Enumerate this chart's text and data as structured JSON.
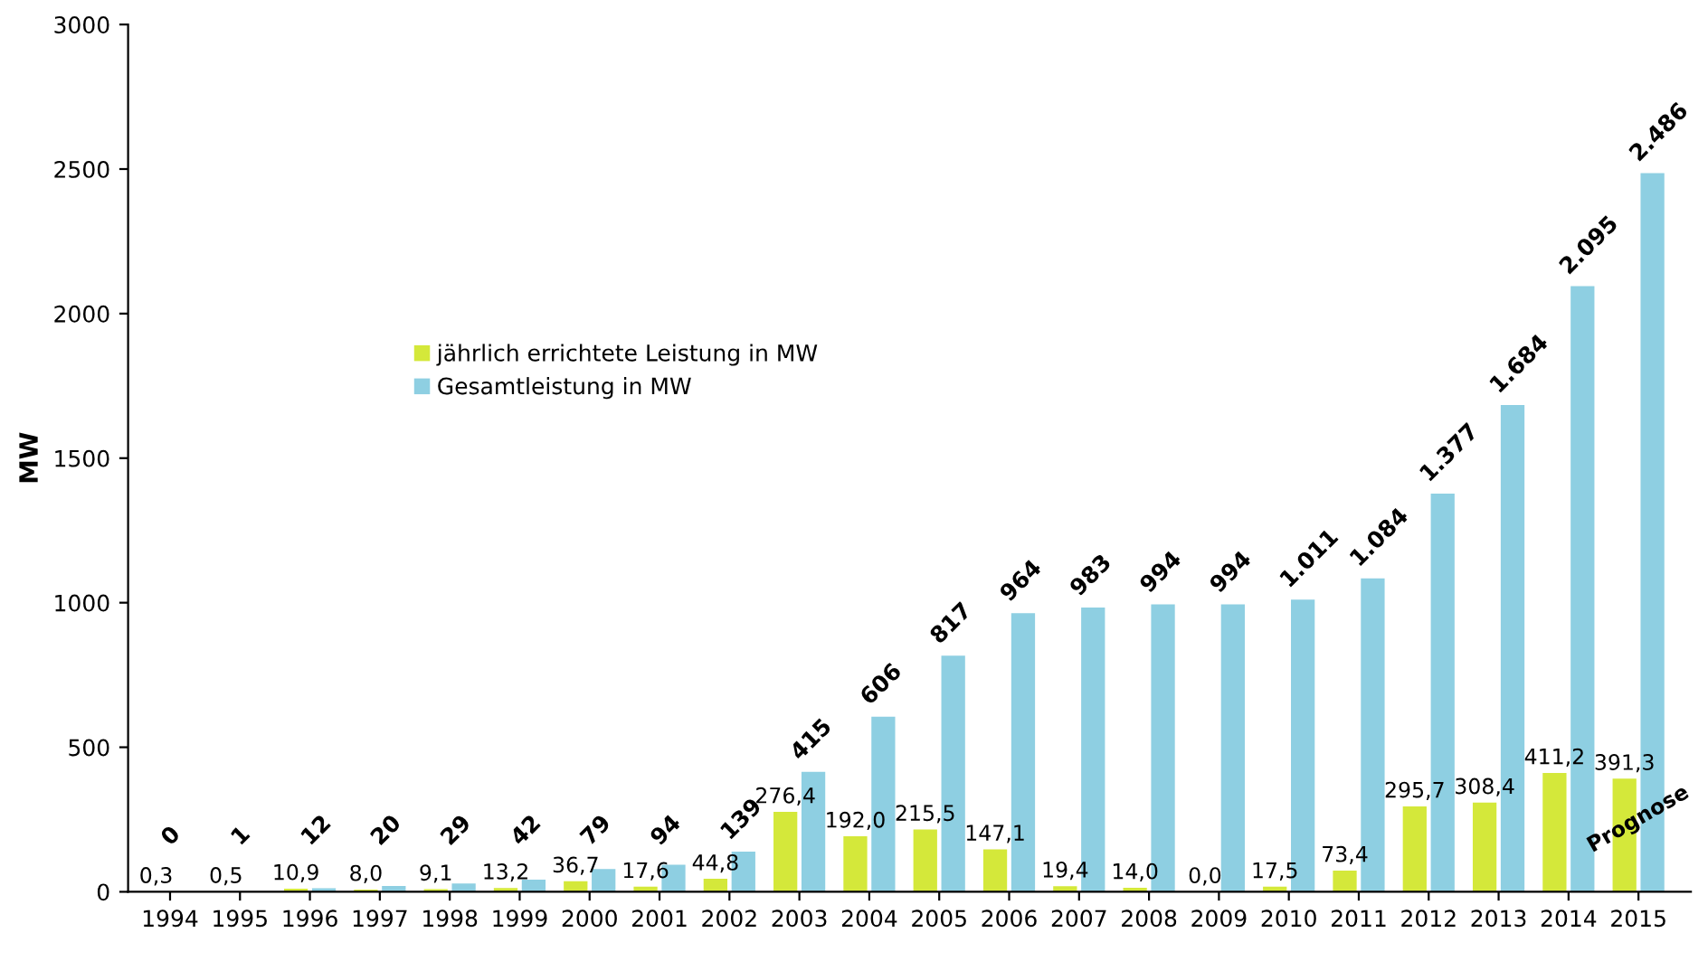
{
  "chart_data": {
    "type": "bar",
    "ylabel": "MW",
    "categories": [
      "1994",
      "1995",
      "1996",
      "1997",
      "1998",
      "1999",
      "2000",
      "2001",
      "2002",
      "2003",
      "2004",
      "2005",
      "2006",
      "2007",
      "2008",
      "2009",
      "2010",
      "2011",
      "2012",
      "2013",
      "2014",
      "2015"
    ],
    "series": [
      {
        "name": "jährlich errichtete Leistung in MW",
        "color": "#d4e83a",
        "values": [
          0.3,
          0.5,
          10.9,
          8.0,
          9.1,
          13.2,
          36.7,
          17.6,
          44.8,
          276.4,
          192.0,
          215.5,
          147.1,
          19.4,
          14.0,
          0.0,
          17.5,
          73.4,
          295.7,
          308.4,
          411.2,
          391.3
        ],
        "value_labels": [
          "0,3",
          "0,5",
          "10,9",
          "8,0",
          "9,1",
          "13,2",
          "36,7",
          "17,6",
          "44,8",
          "276,4",
          "192,0",
          "215,5",
          "147,1",
          "19,4",
          "14,0",
          "0,0",
          "17,5",
          "73,4",
          "295,7",
          "308,4",
          "411,2",
          "391,3"
        ]
      },
      {
        "name": "Gesamtleistung in MW",
        "color": "#8ecfe2",
        "values": [
          0,
          1,
          12,
          20,
          29,
          42,
          79,
          94,
          139,
          415,
          606,
          817,
          964,
          983,
          994,
          994,
          1011,
          1084,
          1377,
          1684,
          2095,
          2486
        ],
        "value_labels": [
          "0",
          "1",
          "12",
          "20",
          "29",
          "42",
          "79",
          "94",
          "139",
          "415",
          "606",
          "817",
          "964",
          "983",
          "994",
          "994",
          "1.011",
          "1.084",
          "1.377",
          "1.684",
          "2.095",
          "2.486"
        ]
      }
    ],
    "ylim": [
      0,
      3000
    ],
    "yticks": [
      0,
      500,
      1000,
      1500,
      2000,
      2500,
      3000
    ],
    "grid": false,
    "legend": "center left",
    "annotations": [
      {
        "text": "Prognose",
        "x": "2015",
        "y": 250
      }
    ]
  }
}
